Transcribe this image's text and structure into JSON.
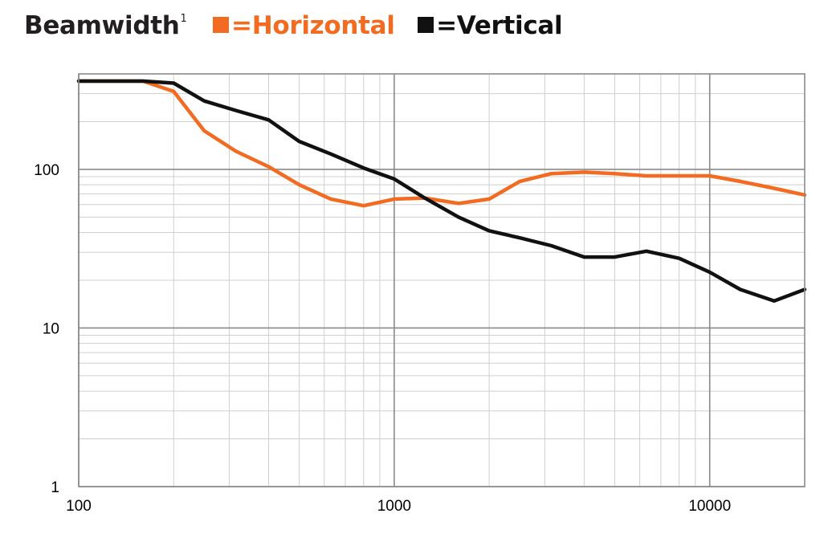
{
  "header": {
    "title": "Beamwidth",
    "footnote": "1",
    "legend": [
      {
        "swatch": "■",
        "label": "=Horizontal",
        "color": "#f26b21"
      },
      {
        "swatch": "■",
        "label": "=Vertical",
        "color": "#111111"
      }
    ]
  },
  "chart_data": {
    "type": "line",
    "title": "Beamwidth",
    "xscale": "log",
    "yscale": "log",
    "xlim": [
      100,
      20000
    ],
    "ylim": [
      1,
      400
    ],
    "grid": true,
    "legend_position": "top",
    "x_ticks": [
      "100",
      "1000",
      "10000"
    ],
    "y_ticks": [
      "1",
      "10",
      "100"
    ],
    "series": [
      {
        "name": "Horizontal",
        "color": "#f26b21",
        "x": [
          100,
          125,
          160,
          200,
          250,
          315,
          400,
          500,
          630,
          800,
          1000,
          1250,
          1600,
          2000,
          2500,
          3150,
          4000,
          5000,
          6300,
          8000,
          10000,
          12500,
          16000,
          20000
        ],
        "y": [
          360,
          360,
          360,
          310,
          175,
          130,
          104,
          80,
          65,
          59,
          65,
          66,
          61,
          65,
          84,
          94,
          96,
          94,
          91,
          91,
          91,
          84,
          76,
          69
        ]
      },
      {
        "name": "Vertical",
        "color": "#111111",
        "x": [
          100,
          125,
          160,
          200,
          250,
          315,
          400,
          500,
          630,
          800,
          1000,
          1250,
          1600,
          2000,
          2500,
          3150,
          4000,
          5000,
          6300,
          8000,
          10000,
          12500,
          16000,
          20000
        ],
        "y": [
          360,
          360,
          360,
          350,
          270,
          235,
          205,
          150,
          125,
          102,
          87,
          66,
          50,
          41,
          37,
          33,
          28,
          28,
          30.5,
          27.5,
          22.5,
          17.5,
          14.8,
          17.5
        ]
      }
    ]
  }
}
